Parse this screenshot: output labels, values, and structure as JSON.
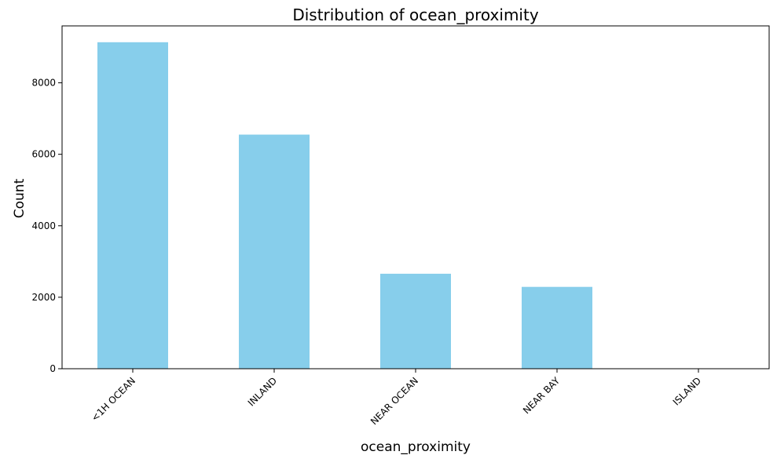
{
  "chart_data": {
    "type": "bar",
    "title": "Distribution of ocean_proximity",
    "xlabel": "ocean_proximity",
    "ylabel": "Count",
    "categories": [
      "<1H OCEAN",
      "INLAND",
      "NEAR OCEAN",
      "NEAR BAY",
      "ISLAND"
    ],
    "values": [
      9136,
      6551,
      2658,
      2290,
      5
    ],
    "ylim": [
      0,
      9593
    ],
    "yticks": [
      0,
      2000,
      4000,
      6000,
      8000
    ],
    "ytick_labels": [
      "0",
      "2000",
      "4000",
      "6000",
      "8000"
    ],
    "bar_color": "#87ceeb",
    "xtick_rotation": -45,
    "grid": false,
    "legend": "none"
  }
}
